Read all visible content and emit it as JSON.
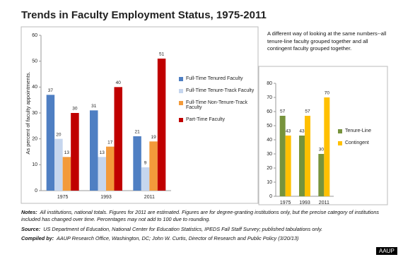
{
  "title": "Trends in Faculty Employment Status, 1975-2011",
  "chart_data": [
    {
      "type": "bar",
      "ylabel": "As percent of faculty appointments.",
      "categories": [
        "1975",
        "1993",
        "2011"
      ],
      "series": [
        {
          "name": "Full-Time Tenured Faculty",
          "color": "#4f7fc3",
          "values": [
            37,
            31,
            21
          ]
        },
        {
          "name": "Full-Time Tenure-Track Faculty",
          "color": "#c6d6ee",
          "values": [
            20,
            13,
            9
          ]
        },
        {
          "name": "Full-Time Non-Tenure-Track Faculty",
          "color": "#f39a3a",
          "values": [
            13,
            17,
            19
          ]
        },
        {
          "name": "Part-Time Faculty",
          "color": "#c00000",
          "values": [
            30,
            40,
            51
          ]
        }
      ],
      "ylim": [
        0,
        60
      ],
      "yticks": [
        0,
        10,
        20,
        30,
        40,
        50,
        60
      ],
      "grid": false,
      "legend": "right"
    },
    {
      "type": "bar",
      "categories": [
        "1975",
        "1993",
        "2011"
      ],
      "series": [
        {
          "name": "Tenure-Line",
          "color": "#77933c",
          "values": [
            57,
            43,
            30
          ]
        },
        {
          "name": "Contingent",
          "color": "#ffc000",
          "values": [
            43,
            57,
            70
          ]
        }
      ],
      "ylim": [
        0,
        80
      ],
      "yticks": [
        0,
        10,
        20,
        30,
        40,
        50,
        60,
        70,
        80
      ],
      "grid": false,
      "legend": "right"
    }
  ],
  "side_note": "A different way of looking at the same numbers--all tenure-line faculty grouped together and all contingent faculty grouped together.",
  "notes": {
    "label": "Notes:",
    "text": "All institutions, national totals. Figures for 2011 are estimated. Figures are for degree-granting institutions only, but the precise category of institutions included  has changed over time. Percentages may not add to 100 due to rounding."
  },
  "source": {
    "label": "Source:",
    "text": "US Department of Education, National Center for Education Statistics, IPEDS Fall Staff Survey; published tabulations only."
  },
  "compiled": {
    "label": "Compiled by:",
    "text": "AAUP Research Office, Washington, DC; John W. Curtis, Director of Research and Public Policy (3/20/13)"
  },
  "badge": "AAUP"
}
